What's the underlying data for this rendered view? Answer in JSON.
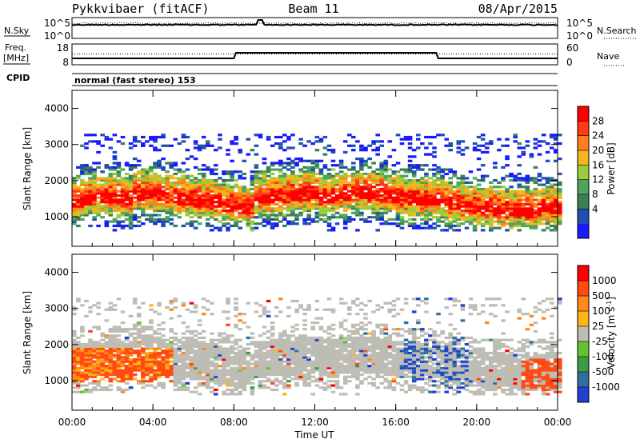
{
  "header": {
    "radar": "Pykkvibaer (fitACF)",
    "beam": "Beam 11",
    "date": "08/Apr/2015"
  },
  "noise_panel": {
    "left_label": "N.Sky",
    "left_ticks": [
      "10^5",
      "10^0"
    ],
    "right_ticks": [
      "10^5",
      "10^0"
    ],
    "right_label": "N.Search"
  },
  "freq_panel": {
    "left_label_1": "Freq.",
    "left_label_2": "[MHz]",
    "left_ticks": [
      "18",
      "8"
    ],
    "right_ticks": [
      "60",
      "0"
    ],
    "right_label": "Nave",
    "cpid_label": "CPID",
    "cpid_text": "normal (fast stereo) 153"
  },
  "chart_data": [
    {
      "type": "heatmap",
      "name": "power",
      "ylabel": "Slant Range [km]",
      "y_ticks": [
        "4000",
        "3000",
        "2000",
        "1000"
      ],
      "y_tick_values": [
        4000,
        3000,
        2000,
        1000
      ],
      "ylim": [
        180,
        4500
      ],
      "xlim_hours": [
        0,
        24
      ],
      "colorbar_label": "Power [dB]",
      "colorbar_ticks": [
        "28",
        "24",
        "20",
        "16",
        "12",
        "8",
        "4"
      ],
      "colors": [
        "#1a1aff",
        "#1f4fb0",
        "#3d7f55",
        "#4fa45c",
        "#9ccc3a",
        "#f5b51f",
        "#ff7f1a",
        "#ff3a14",
        "#ff0000"
      ]
    },
    {
      "type": "heatmap",
      "name": "velocity",
      "ylabel": "Slant Range [km]",
      "y_ticks": [
        "4000",
        "3000",
        "2000",
        "1000"
      ],
      "y_tick_values": [
        4000,
        3000,
        2000,
        1000
      ],
      "ylim": [
        180,
        4500
      ],
      "xlim_hours": [
        0,
        24
      ],
      "colorbar_label": "Velocity  [m s",
      "colorbar_label_sup": "-1",
      "colorbar_label_end": "]",
      "colorbar_ticks": [
        "1000",
        "500",
        "100",
        "25",
        "-25",
        "-100",
        "-500",
        "-1000"
      ],
      "colors": [
        "#1f3fd6",
        "#2e6fa0",
        "#3f9a48",
        "#63c22d",
        "#bdbdb5",
        "#ffb41a",
        "#ff8a1a",
        "#ff4a14",
        "#ff0000"
      ]
    }
  ],
  "x_axis": {
    "ticks": [
      "00:00",
      "04:00",
      "08:00",
      "12:00",
      "16:00",
      "20:00",
      "00:00"
    ],
    "tick_hours": [
      0,
      4,
      8,
      12,
      16,
      20,
      24
    ],
    "label": "Time UT"
  }
}
